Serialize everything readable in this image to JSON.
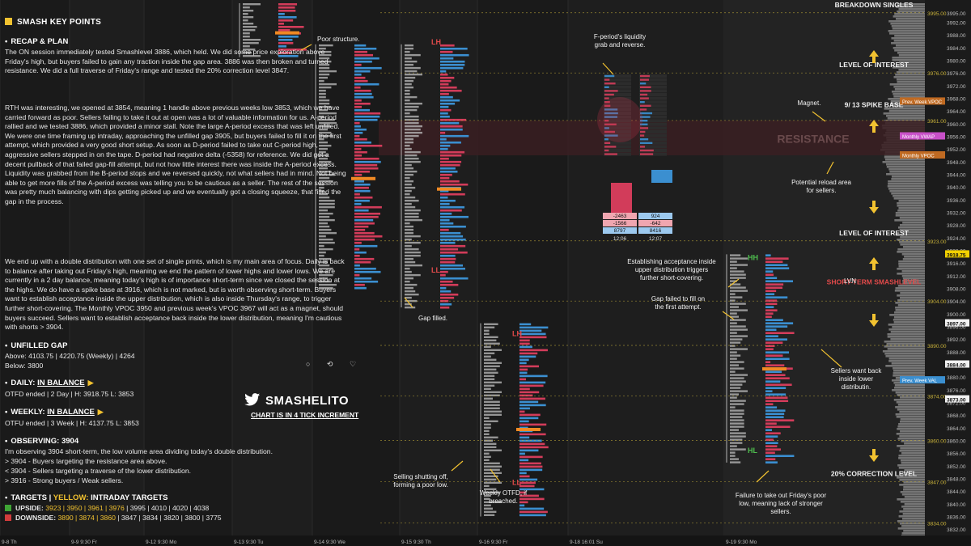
{
  "chart_data": {
    "type": "market_profile",
    "instrument_note": "CHART IS IN 4 TICK INCREMENT",
    "y_axis": {
      "min": 3830,
      "max": 3998,
      "ticks": [
        "3995.00",
        "3992.00",
        "3988.00",
        "3984.00",
        "3980.00",
        "3976.00",
        "3972.00",
        "3968.00",
        "3964.00",
        "3960.00",
        "3956.00",
        "3952.00",
        "3948.00",
        "3944.00",
        "3940.00",
        "3936.00",
        "3932.00",
        "3928.00",
        "3924.00",
        "3920.00",
        "3916.00",
        "3912.00",
        "3908.00",
        "3904.00",
        "3900.00",
        "3896.00",
        "3892.00",
        "3888.00",
        "3884.00",
        "3880.00",
        "3876.00",
        "3872.00",
        "3868.00",
        "3864.00",
        "3860.00",
        "3856.00",
        "3852.00",
        "3848.00",
        "3844.00",
        "3840.00",
        "3836.00",
        "3832.00"
      ],
      "highlighted_ticks": [
        {
          "label": "3918.75",
          "color": "#f2d100"
        },
        {
          "label": "3884.00",
          "color": "#f2f2f2"
        },
        {
          "label": "3897.00",
          "color": "#f2f2f2"
        },
        {
          "label": "3873.00",
          "color": "#f2f2f2"
        }
      ],
      "level_tags": [
        {
          "label": "Prev. Week VPOC",
          "price": 3967,
          "color": "#c06a22"
        },
        {
          "label": "Monthly VWAP",
          "price": 3956,
          "color": "#c850c8"
        },
        {
          "label": "Monthly VPOC",
          "price": 3950,
          "color": "#c06a22"
        },
        {
          "label": "Prev. Week VAL",
          "price": 3879,
          "color": "#3b8fd0"
        }
      ]
    },
    "x_axis": {
      "ticks": [
        "9-8 Th",
        "9-9 9:30 Fr",
        "9-12 9:30 Mo",
        "9-13 9:30 Tu",
        "9-14 9:30 We",
        "9-15 9:30 Th",
        "9-16 9:30 Fr",
        "9-18 16:01 Su",
        "9-19 9:30 Mo"
      ]
    },
    "key_levels": [
      {
        "price": 3995,
        "label": "BREAKDOWN SINGLES"
      },
      {
        "price": 3976,
        "label": "LEVEL OF INTEREST"
      },
      {
        "price": 3961,
        "label": ""
      },
      {
        "price": 3923,
        "label": "LEVEL OF INTEREST"
      },
      {
        "price": 3904,
        "label": ""
      },
      {
        "price": 3890,
        "label": ""
      },
      {
        "price": 3874,
        "label": ""
      },
      {
        "price": 3860,
        "label": ""
      },
      {
        "price": 3847,
        "label": "20% CORRECTION LEVEL"
      },
      {
        "price": 3834,
        "label": ""
      }
    ],
    "zones": [
      {
        "label": "RESISTANCE",
        "from": 3950,
        "to": 3961,
        "color": "#3a1f22"
      }
    ],
    "zone_labels": [
      {
        "price": 3966,
        "label": "9/ 13 SPIKE BASE"
      },
      {
        "price": 3910,
        "label": "SHORT-TERM SMASHLEVEL"
      }
    ],
    "sessions": [
      {
        "date": "9-13",
        "high": 3998,
        "low": 3981,
        "label": "",
        "label_price": null
      },
      {
        "date": "9-14",
        "high": 3985,
        "low": 3908,
        "label": "LH",
        "label_price": 3985
      },
      {
        "date": "9-15",
        "high": 3985,
        "low": 3902,
        "label": "LL",
        "label_price": 3913
      },
      {
        "date": "9-16",
        "high": 3897,
        "low": 3836,
        "label": "LH",
        "label_price": 3893
      },
      {
        "date": "9-16b",
        "high": 3850,
        "low": 3836,
        "label": "LL",
        "label_price": 3846
      },
      {
        "date": "9-19",
        "high": 3918.75,
        "low": 3853,
        "label": "HH",
        "label_price": 3917
      },
      {
        "date": "9-19b",
        "high": 3870,
        "low": 3853,
        "label": "HL",
        "label_price": 3856
      }
    ],
    "annotations": [
      "Poor structure.",
      "F-period's liquidity grab and reverse.",
      "Magnet.",
      "Potential reload area for sellers.",
      "Gap filled.",
      "Establishing acceptance inside upper distribution triggers further short-covering.",
      "Gap failed to fill on the first attempt.",
      "LVN",
      "Sellers want back inside lower distributin.",
      "Selling shutting off, forming a poor low.",
      "Weekly OTFD, if breached.",
      "Failure to take out Friday's poor low, meaning lack of stronger sellers."
    ],
    "footprint": {
      "times": [
        "12:06",
        "12:07"
      ],
      "delta": [
        -2463,
        924
      ],
      "cum_delta": [
        -1566,
        -642
      ],
      "volume": [
        8797,
        8416
      ]
    }
  },
  "notes": {
    "title": "SMASH KEY POINTS",
    "recap_title": "RECAP & PLAN",
    "recap_p1": "The ON session immediately tested Smashlevel 3886, which held. We did some price exploration above Friday's high, but buyers failed to gain any traction inside the gap area. 3886 was then broken and turned resistance. We did a full traverse of Friday's range and tested the 20% correction level 3847.",
    "recap_p2": "RTH was interesting, we opened at 3854, meaning 1 handle above previous weeks low 3853, which we have carried forward as poor. Sellers failing to take it out at open was a lot of valuable information for us. A-period rallied and we tested 3886, which provided a minor stall. Note the large A-period excess that was left unfilled. We were one time framing up intraday, approaching the unfilled gap 3905, but buyers failed to fill it on the first attempt, which provided a very good short setup. As soon as D-period failed to take out C-period high, aggressive sellers stepped in on the tape. D-period had negative delta (-5358) for reference. We did get a decent pullback of that failed gap-fill attempt, but not how little interest there was inside the A-period excess. Liquidity was grabbed from the B-period stops and we reversed quickly, not what sellers had in mind. Not being able to get more fills of the A-period excess was telling you to be cautious as a seller. The rest of the session was pretty much balancing with dips getting picked up and we eventually got a closing squeeze, that filled the gap in the process.",
    "recap_p3": "We end up with a double distribution with one set of single prints, which is my main area of focus. Daily is back to balance after taking out Friday's high, meaning we end the pattern of lower highs and lower lows. We are currently in a 2 day balance, meaning today's high is of importance short-term since we closed the session at the highs. We do have a spike base at 3916, which is not marked, but is worth observing short-term. Buyers want to establish acceptance inside the upper distribution, which is also inside Thursday's range, to trigger further short-covering. The Monthly VPOC 3950 and previous week's VPOC 3967 will act as a magnet, should buyers succeed. Sellers want to establish acceptance back inside the lower distribution, meaning I'm cautious with shorts > 3904.",
    "gap_title": "UNFILLED GAP",
    "gap_above": "Above: 4103.75 | 4220.75 (Weekly) | 4264",
    "gap_below": "Below: 3800",
    "daily_title": "DAILY:",
    "daily_state": "IN BALANCE",
    "daily_line": "OTFD ended | 2 Day | H: 3918.75 L: 3853",
    "weekly_title": "WEEKLY:",
    "weekly_state": "IN BALANCE",
    "weekly_line": "OTFU ended | 3 Week | H: 4137.75 L: 3853",
    "obs_title": "OBSERVING: 3904",
    "obs_1": "I'm observing 3904 short-term, the low volume area dividing today's double distribution.",
    "obs_2": "> 3904 - Buyers targeting the resistance area above.",
    "obs_3": "< 3904 - Sellers targeting a traverse of the lower distribution.",
    "obs_4": "> 3916 - Strong buyers / Weak sellers.",
    "targets_title": "TARGETS",
    "targets_yellow": "YELLOW:",
    "targets_sub": "INTRADAY TARGETS",
    "upside_label": "UPSIDE:",
    "upside_yellow": "3923 | 3950 | 3961 | 3976",
    "upside_rest": " | 3995 | 4010 | 4020 | 4038",
    "downside_label": "DOWNSIDE:",
    "downside_yellow": "3890 | 3874 | 3860",
    "downside_rest": " | 3847 | 3834 | 3820 | 3800 | 3775",
    "twitter": "SMASHELITO",
    "social": "○ ⟲ ♡",
    "colors": {
      "accent": "#f2c230",
      "upside": "#3fa535",
      "downside": "#d23c3c"
    }
  }
}
